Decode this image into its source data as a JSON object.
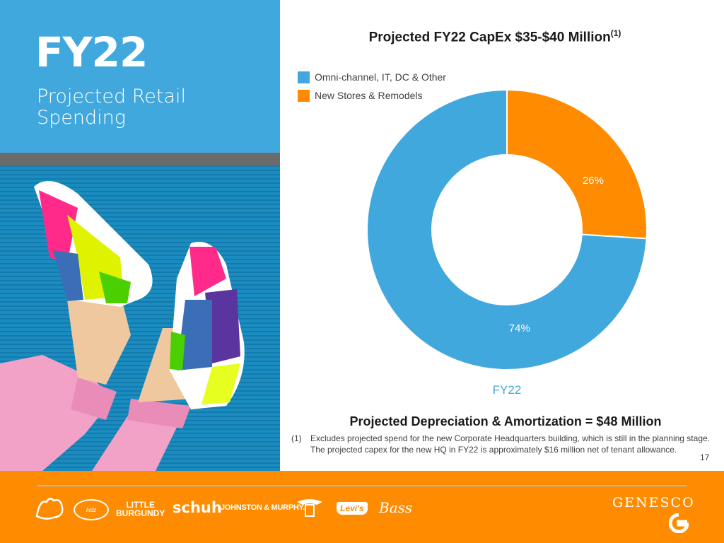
{
  "left": {
    "title": "FY22",
    "subtitle": "Projected Retail Spending"
  },
  "chart_data": {
    "type": "pie",
    "title": "Projected FY22 CapEx $35-$40 Million",
    "title_superscript": "(1)",
    "categories": [
      "Omni-channel, IT, DC & Other",
      "New Stores & Remodels"
    ],
    "values": [
      74,
      26
    ],
    "labels": [
      "74%",
      "26%"
    ],
    "colors": [
      "#41a8dd",
      "#ff8c00"
    ],
    "xlabel": "FY22",
    "legend": "top-left",
    "style": "donut"
  },
  "da_line": "Projected Depreciation & Amortization = $48 Million",
  "footnote": {
    "num": "(1)",
    "text": "Excludes projected spend for the new Corporate Headquarters building, which is still in the planning stage. The projected capex for the new HQ in FY22 is approximately $16 million net of tenant allowance."
  },
  "page_number": "17",
  "footer": {
    "brands": {
      "little_burgundy_1": "LITTLE",
      "little_burgundy_2": "BURGUNDY",
      "schuh": "schuh",
      "johnston_murphy": "JOHNSTON & MURPHY.",
      "dockers_1": "DOCKERS",
      "levis": "Levi's",
      "bass": "Bass",
      "genesco": "GENESCO"
    }
  }
}
